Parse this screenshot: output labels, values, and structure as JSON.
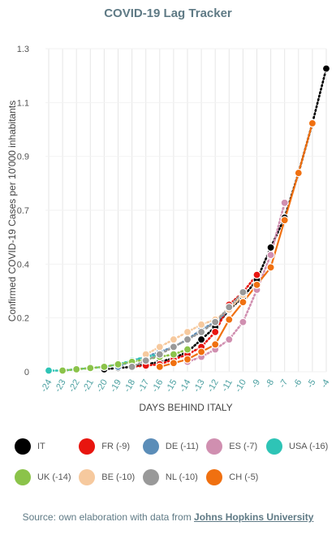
{
  "title": "COVID-19 Lag Tracker",
  "source": {
    "text": "Source: own elaboration with data from ",
    "link": "Johns Hopkins University"
  },
  "chart_data": {
    "type": "line",
    "title": "COVID-19 Lag Tracker",
    "xlabel": "DAYS BEHIND ITALY",
    "ylabel": "Confirmed COVID-19 Cases per 10'000 inhabitants",
    "x": [
      -24,
      -23,
      -22,
      -21,
      -20,
      -19,
      -18,
      -17,
      -16,
      -15,
      -14,
      -13,
      -12,
      -11,
      -10,
      -9,
      -8,
      -7,
      -6,
      -5,
      -4
    ],
    "x_ticks": [
      "-24",
      "-23",
      "-22",
      "-21",
      "-20",
      "-19",
      "-18",
      "-17",
      "-16",
      "-15",
      "-14",
      "-13",
      "-12",
      "-11",
      "-10",
      "-9",
      "-8",
      "-7",
      "-6",
      "-5",
      "-4"
    ],
    "y_ticks": [
      "0",
      "0.2",
      "0.4",
      "0.7",
      "0.9",
      "1.1",
      "1.3"
    ],
    "ylim": [
      0,
      1.3
    ],
    "grid": "vertical",
    "legend_position": "bottom",
    "series": [
      {
        "name": "IT",
        "color": "#000000",
        "dashed": true,
        "points": [
          [
            -20,
            0.01
          ],
          [
            -19,
            0.015
          ],
          [
            -18,
            0.02
          ],
          [
            -17,
            0.03
          ],
          [
            -16,
            0.04
          ],
          [
            -15,
            0.055
          ],
          [
            -14,
            0.08
          ],
          [
            -13,
            0.13
          ],
          [
            -12,
            0.18
          ],
          [
            -11,
            0.25
          ],
          [
            -10,
            0.3
          ],
          [
            -9,
            0.37
          ],
          [
            -8,
            0.5
          ],
          [
            -7,
            0.62
          ],
          [
            -6,
            0.8
          ],
          [
            -5,
            1.0
          ],
          [
            -4,
            1.22
          ]
        ]
      },
      {
        "name": "FR (-9)",
        "color": "#e8150f",
        "dashed": true,
        "points": [
          [
            -18,
            0.02
          ],
          [
            -17,
            0.025
          ],
          [
            -16,
            0.03
          ],
          [
            -15,
            0.05
          ],
          [
            -14,
            0.07
          ],
          [
            -13,
            0.1
          ],
          [
            -12,
            0.16
          ],
          [
            -11,
            0.27
          ],
          [
            -10,
            0.32
          ],
          [
            -9,
            0.39
          ]
        ]
      },
      {
        "name": "DE (-11)",
        "color": "#5b8db8",
        "dashed": true,
        "points": [
          [
            -19,
            0.02
          ],
          [
            -18,
            0.045
          ],
          [
            -17,
            0.06
          ],
          [
            -16,
            0.08
          ],
          [
            -15,
            0.1
          ],
          [
            -14,
            0.13
          ],
          [
            -13,
            0.17
          ],
          [
            -12,
            0.2
          ],
          [
            -11,
            0.25
          ]
        ]
      },
      {
        "name": "ES (-7)",
        "color": "#d08fb0",
        "dashed": true,
        "points": [
          [
            -14,
            0.04
          ],
          [
            -13,
            0.06
          ],
          [
            -12,
            0.09
          ],
          [
            -11,
            0.13
          ],
          [
            -10,
            0.2
          ],
          [
            -9,
            0.33
          ],
          [
            -8,
            0.47
          ],
          [
            -7,
            0.68
          ]
        ]
      },
      {
        "name": "USA (-16)",
        "color": "#2ec4b6",
        "dashed": true,
        "points": [
          [
            -24,
            0.005
          ],
          [
            -23,
            0.005
          ],
          [
            -22,
            0.01
          ],
          [
            -21,
            0.015
          ],
          [
            -20,
            0.02
          ],
          [
            -19,
            0.03
          ],
          [
            -18,
            0.045
          ],
          [
            -17,
            0.06
          ],
          [
            -16,
            0.07
          ]
        ]
      },
      {
        "name": "UK (-14)",
        "color": "#8bc34a",
        "dashed": true,
        "points": [
          [
            -23,
            0.005
          ],
          [
            -22,
            0.01
          ],
          [
            -21,
            0.015
          ],
          [
            -20,
            0.02
          ],
          [
            -19,
            0.03
          ],
          [
            -18,
            0.04
          ],
          [
            -17,
            0.05
          ],
          [
            -16,
            0.06
          ],
          [
            -15,
            0.07
          ],
          [
            -14,
            0.09
          ]
        ]
      },
      {
        "name": "BE (-10)",
        "color": "#f6c99e",
        "dashed": true,
        "points": [
          [
            -17,
            0.07
          ],
          [
            -16,
            0.1
          ],
          [
            -15,
            0.13
          ],
          [
            -14,
            0.16
          ],
          [
            -13,
            0.19
          ],
          [
            -12,
            0.21
          ],
          [
            -11,
            0.25
          ],
          [
            -10,
            0.31
          ]
        ]
      },
      {
        "name": "NL (-10)",
        "color": "#999999",
        "dashed": true,
        "points": [
          [
            -18,
            0.02
          ],
          [
            -17,
            0.045
          ],
          [
            -16,
            0.07
          ],
          [
            -15,
            0.1
          ],
          [
            -14,
            0.13
          ],
          [
            -13,
            0.16
          ],
          [
            -12,
            0.2
          ],
          [
            -11,
            0.26
          ],
          [
            -10,
            0.32
          ]
        ]
      },
      {
        "name": "CH (-5)",
        "color": "#f07010",
        "dashed": false,
        "points": [
          [
            -16,
            0.02
          ],
          [
            -15,
            0.035
          ],
          [
            -14,
            0.05
          ],
          [
            -13,
            0.08
          ],
          [
            -12,
            0.11
          ],
          [
            -11,
            0.21
          ],
          [
            -10,
            0.28
          ],
          [
            -9,
            0.35
          ],
          [
            -8,
            0.42
          ],
          [
            -7,
            0.61
          ],
          [
            -6,
            0.8
          ],
          [
            -5,
            1.0
          ]
        ]
      }
    ]
  }
}
